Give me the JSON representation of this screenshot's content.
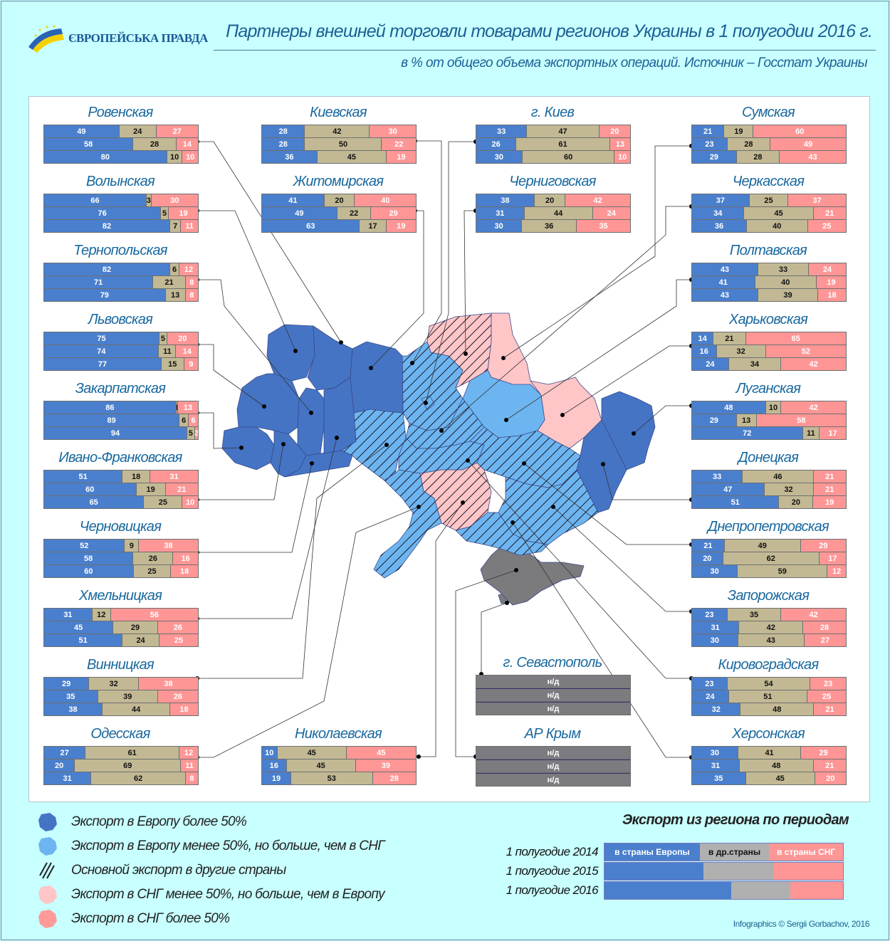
{
  "header": {
    "logo_text": "ЄВРОПЕЙСЬКА ПРАВДА",
    "title": "Партнеры внешней торговли товарами регионов Украины в 1 полугодии 2016 г.",
    "subtitle": "в % от общего объема экспортных операций. Источник – Госстат Украины"
  },
  "colors": {
    "europe": "#4a7fcd",
    "other": "#c2b994",
    "cis": "#ff9696",
    "na": "#7c7b80",
    "map_eu_major": "#4574c4",
    "map_eu_minor": "#6db5f0",
    "map_cis_minor": "#ffc6c8",
    "map_cis_major": "#ff9a9a",
    "map_crimea": "#7b7b7d"
  },
  "chart_data": {
    "type": "bar",
    "title": "Партнеры внешней торговли товарами регионов Украины в 1 полугодии 2016 г.",
    "subtitle": "в % от общего объема экспортных операций",
    "periods": [
      "1 полугодие 2014",
      "1 полугодие 2015",
      "1 полугодие 2016"
    ],
    "series_names": [
      "в страны Европы",
      "в др.страны",
      "в страны СНГ"
    ],
    "regions": [
      {
        "name": "Ровенская",
        "map_class": "eu_major",
        "rows": [
          [
            49,
            24,
            27
          ],
          [
            58,
            28,
            14
          ],
          [
            80,
            10,
            10
          ]
        ]
      },
      {
        "name": "Волынская",
        "map_class": "eu_major",
        "rows": [
          [
            66,
            3,
            30
          ],
          [
            76,
            5,
            19
          ],
          [
            82,
            7,
            11
          ]
        ]
      },
      {
        "name": "Тернопольская",
        "map_class": "eu_major",
        "rows": [
          [
            82,
            6,
            12
          ],
          [
            71,
            21,
            8
          ],
          [
            79,
            13,
            8
          ]
        ]
      },
      {
        "name": "Львовская",
        "map_class": "eu_major",
        "rows": [
          [
            75,
            5,
            20
          ],
          [
            74,
            11,
            14
          ],
          [
            77,
            15,
            9
          ]
        ]
      },
      {
        "name": "Закарпатская",
        "map_class": "eu_major",
        "rows": [
          [
            86,
            1,
            13
          ],
          [
            89,
            6,
            6
          ],
          [
            94,
            5,
            2
          ]
        ]
      },
      {
        "name": "Ивано-Франковская",
        "map_class": "eu_major",
        "rows": [
          [
            51,
            18,
            31
          ],
          [
            60,
            19,
            21
          ],
          [
            65,
            25,
            10
          ]
        ]
      },
      {
        "name": "Черновицкая",
        "map_class": "eu_major",
        "rows": [
          [
            52,
            9,
            38
          ],
          [
            58,
            26,
            16
          ],
          [
            60,
            25,
            18
          ]
        ]
      },
      {
        "name": "Хмельницкая",
        "map_class": "eu_major",
        "rows": [
          [
            31,
            12,
            56
          ],
          [
            45,
            29,
            26
          ],
          [
            51,
            24,
            25
          ]
        ]
      },
      {
        "name": "Винницкая",
        "map_class": "other_eu",
        "rows": [
          [
            29,
            32,
            38
          ],
          [
            35,
            39,
            26
          ],
          [
            38,
            44,
            18
          ]
        ]
      },
      {
        "name": "Одесская",
        "map_class": "other_eu",
        "rows": [
          [
            27,
            61,
            12
          ],
          [
            20,
            69,
            11
          ],
          [
            31,
            62,
            8
          ]
        ]
      },
      {
        "name": "Киевская",
        "map_class": "other_eu",
        "rows": [
          [
            28,
            42,
            30
          ],
          [
            28,
            50,
            22
          ],
          [
            36,
            45,
            19
          ]
        ]
      },
      {
        "name": "Житомирская",
        "map_class": "eu_major",
        "rows": [
          [
            41,
            20,
            40
          ],
          [
            49,
            22,
            29
          ],
          [
            63,
            17,
            19
          ]
        ]
      },
      {
        "name": "Николаевская",
        "map_class": "other_cis",
        "rows": [
          [
            10,
            45,
            45
          ],
          [
            16,
            45,
            39
          ],
          [
            19,
            53,
            28
          ]
        ]
      },
      {
        "name": "г. Киев",
        "map_class": "other_eu",
        "rows": [
          [
            33,
            47,
            20
          ],
          [
            26,
            61,
            13
          ],
          [
            30,
            60,
            10
          ]
        ]
      },
      {
        "name": "Черниговская",
        "map_class": "other_cis",
        "rows": [
          [
            38,
            20,
            42
          ],
          [
            31,
            44,
            24
          ],
          [
            30,
            36,
            35
          ]
        ]
      },
      {
        "name": "г. Севастополь",
        "map_class": "na",
        "rows": [
          [
            "н/д"
          ],
          [
            "н/д"
          ],
          [
            "н/д"
          ]
        ]
      },
      {
        "name": "АР Крым",
        "map_class": "na",
        "rows": [
          [
            "н/д"
          ],
          [
            "н/д"
          ],
          [
            "н/д"
          ]
        ]
      },
      {
        "name": "Сумская",
        "map_class": "cis_minor",
        "rows": [
          [
            21,
            19,
            60
          ],
          [
            23,
            28,
            49
          ],
          [
            29,
            28,
            43
          ]
        ]
      },
      {
        "name": "Черкасская",
        "map_class": "other_eu",
        "rows": [
          [
            37,
            25,
            37
          ],
          [
            34,
            45,
            21
          ],
          [
            36,
            40,
            25
          ]
        ]
      },
      {
        "name": "Полтавская",
        "map_class": "eu_minor",
        "rows": [
          [
            43,
            33,
            24
          ],
          [
            41,
            40,
            19
          ],
          [
            43,
            39,
            18
          ]
        ]
      },
      {
        "name": "Харьковская",
        "map_class": "cis_minor",
        "rows": [
          [
            14,
            21,
            65
          ],
          [
            16,
            32,
            52
          ],
          [
            24,
            34,
            42
          ]
        ]
      },
      {
        "name": "Луганская",
        "map_class": "eu_major",
        "rows": [
          [
            48,
            10,
            42
          ],
          [
            29,
            13,
            58
          ],
          [
            72,
            11,
            17
          ]
        ]
      },
      {
        "name": "Донецкая",
        "map_class": "eu_major",
        "rows": [
          [
            33,
            46,
            21
          ],
          [
            47,
            32,
            21
          ],
          [
            51,
            20,
            19
          ]
        ]
      },
      {
        "name": "Днепропетровская",
        "map_class": "other_eu",
        "rows": [
          [
            21,
            49,
            29
          ],
          [
            20,
            62,
            17
          ],
          [
            30,
            59,
            12
          ]
        ]
      },
      {
        "name": "Запорожская",
        "map_class": "other_eu",
        "rows": [
          [
            23,
            35,
            42
          ],
          [
            31,
            42,
            28
          ],
          [
            30,
            43,
            27
          ]
        ]
      },
      {
        "name": "Кировоградская",
        "map_class": "other_eu",
        "rows": [
          [
            23,
            54,
            23
          ],
          [
            24,
            51,
            25
          ],
          [
            32,
            48,
            21
          ]
        ]
      },
      {
        "name": "Херсонская",
        "map_class": "other_eu",
        "rows": [
          [
            30,
            41,
            29
          ],
          [
            31,
            48,
            21
          ],
          [
            35,
            45,
            20
          ]
        ]
      }
    ]
  },
  "legend": {
    "items": [
      {
        "label": "Экспорт в Европу более 50%",
        "icon": "region-dark-blue-icon"
      },
      {
        "label": "Экспорт в Европу менее 50%, но больше, чем в СНГ",
        "icon": "region-light-blue-icon"
      },
      {
        "label": "Основной экспорт в другие страны",
        "icon": "hatch-icon"
      },
      {
        "label": "Экспорт в СНГ менее 50%, но больше, чем в Европу",
        "icon": "region-light-pink-icon"
      },
      {
        "label": "Экспорт в СНГ более 50%",
        "icon": "region-pink-icon"
      }
    ]
  },
  "periods_legend": {
    "title": "Экспорт из региона по периодам",
    "rows": [
      {
        "label": "1 полугодие 2014",
        "shares": [
          40,
          29,
          31
        ]
      },
      {
        "label": "1 полугодие 2015",
        "shares": [
          41.5,
          29.5,
          29
        ]
      },
      {
        "label": "1 полугодие 2016",
        "shares": [
          53,
          25,
          22
        ]
      }
    ],
    "segment_labels": [
      "в страны Европы",
      "в др.страны",
      "в страны СНГ"
    ]
  },
  "credit": "Infographics © Sergii Gorbachov, 2016"
}
